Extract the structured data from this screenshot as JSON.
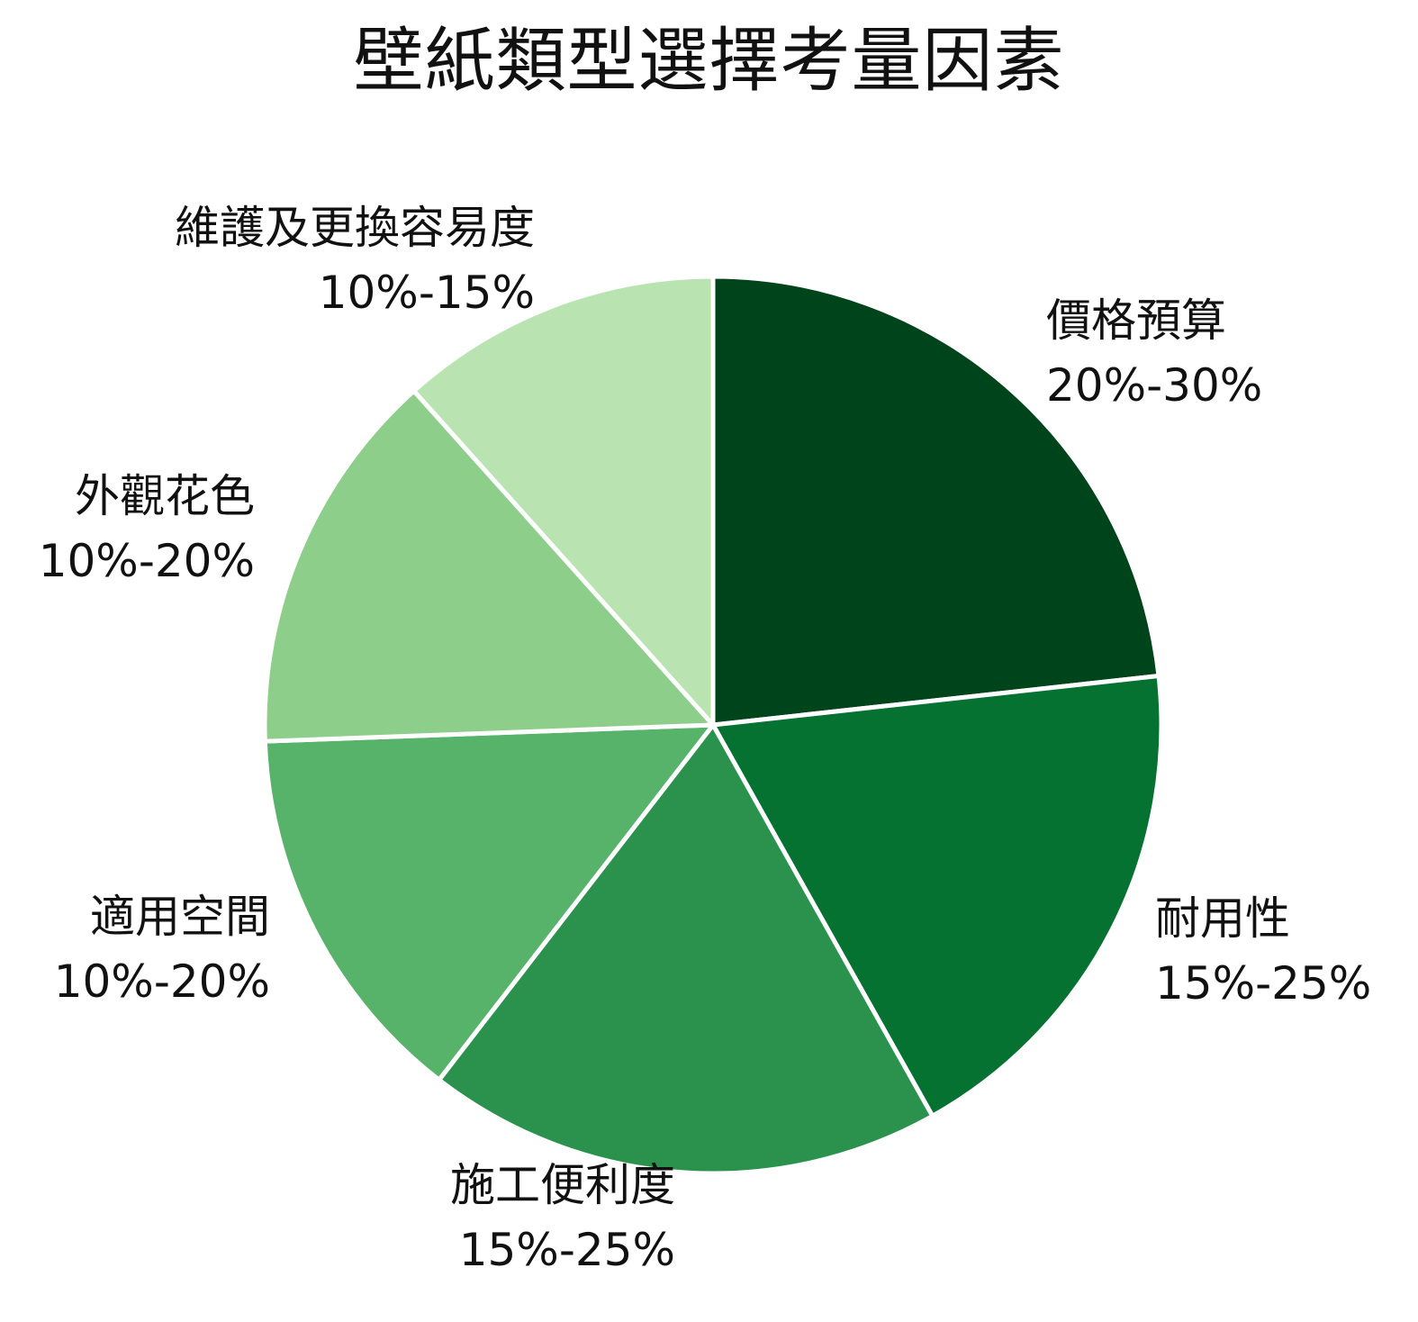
{
  "chart_data": {
    "type": "pie",
    "title": "壁紙類型選擇考量因素",
    "slices": [
      {
        "label": "價格預算",
        "range": "20%-30%",
        "value": 25,
        "color": "#00441b"
      },
      {
        "label": "耐用性",
        "range": "15%-25%",
        "value": 20,
        "color": "#067231"
      },
      {
        "label": "施工便利度",
        "range": "15%-25%",
        "value": 20,
        "color": "#2b924d"
      },
      {
        "label": "適用空間",
        "range": "10%-20%",
        "value": 15,
        "color": "#56b369"
      },
      {
        "label": "外觀花色",
        "range": "10%-20%",
        "value": 15,
        "color": "#8dce8a"
      },
      {
        "label": "維護及更換容易度",
        "range": "10%-15%",
        "value": 12.5,
        "color": "#b9e4b2"
      }
    ],
    "start_angle": "12 o'clock",
    "direction": "clockwise",
    "legend": "none"
  }
}
